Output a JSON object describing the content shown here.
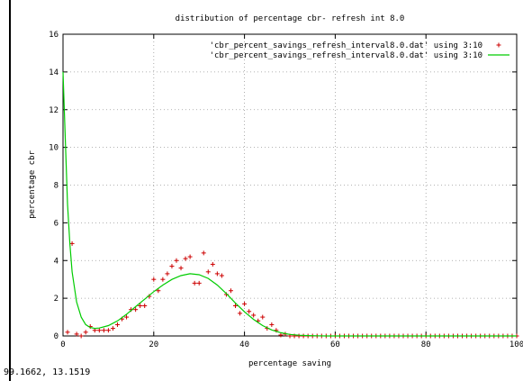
{
  "status_bar": {
    "coordinates": "99.1662,  13.1519"
  },
  "chart_data": {
    "type": "scatter",
    "title": "distribution of percentage cbr- refresh int 8.0",
    "xlabel": "percentage saving",
    "ylabel": "percentage cbr",
    "xlim": [
      0,
      100
    ],
    "ylim": [
      0,
      16
    ],
    "xticks": [
      0,
      20,
      40,
      60,
      80,
      100
    ],
    "yticks": [
      0,
      2,
      4,
      6,
      8,
      10,
      12,
      14,
      16
    ],
    "grid": true,
    "legend_position": "top-right",
    "series": [
      {
        "name": "'cbr_percent_savings_refresh_interval8.0.dat' using 3:10",
        "style": "points",
        "color": "#cc0000",
        "x": [
          1,
          2,
          3,
          4,
          5,
          6,
          7,
          8,
          9,
          10,
          11,
          12,
          13,
          14,
          15,
          16,
          17,
          18,
          19,
          20,
          21,
          22,
          23,
          24,
          25,
          26,
          27,
          28,
          29,
          30,
          31,
          32,
          33,
          34,
          35,
          36,
          37,
          38,
          39,
          40,
          41,
          42,
          43,
          44,
          45,
          46,
          47,
          48,
          49,
          50,
          51,
          52,
          53,
          54,
          55,
          56,
          57,
          58,
          59,
          60,
          61,
          62,
          63,
          64,
          65,
          66,
          67,
          68,
          69,
          70,
          71,
          72,
          73,
          74,
          75,
          76,
          77,
          78,
          79,
          80,
          81,
          82,
          83,
          84,
          85,
          86,
          87,
          88,
          89,
          90,
          91,
          92,
          93,
          94,
          95,
          96,
          97,
          98,
          99,
          100
        ],
        "y": [
          0.2,
          4.9,
          0.1,
          0.0,
          0.2,
          0.5,
          0.3,
          0.3,
          0.3,
          0.3,
          0.4,
          0.6,
          0.9,
          1.0,
          1.4,
          1.4,
          1.6,
          1.6,
          2.1,
          3.0,
          2.4,
          3.0,
          3.3,
          3.7,
          4.0,
          3.6,
          4.1,
          4.2,
          2.8,
          2.8,
          4.4,
          3.4,
          3.8,
          3.3,
          3.2,
          2.2,
          2.4,
          1.6,
          1.2,
          1.7,
          1.3,
          1.1,
          0.8,
          1.0,
          0.4,
          0.6,
          0.3,
          0.05,
          0.1,
          0.0,
          0.0,
          0.0,
          0.0,
          0.0,
          0.0,
          0.0,
          0.0,
          0.0,
          0.0,
          0.0,
          0.0,
          0.0,
          0.0,
          0.0,
          0.0,
          0.0,
          0.0,
          0.0,
          0.0,
          0.0,
          0.0,
          0.0,
          0.0,
          0.0,
          0.0,
          0.0,
          0.0,
          0.0,
          0.0,
          0.0,
          0.0,
          0.0,
          0.0,
          0.0,
          0.0,
          0.0,
          0.0,
          0.0,
          0.0,
          0.0,
          0.0,
          0.0,
          0.0,
          0.0,
          0.0,
          0.0,
          0.0,
          0.0,
          0.0,
          0.0
        ]
      },
      {
        "name": "'cbr_percent_savings_refresh_interval8.0.dat' using 3:10",
        "style": "line",
        "color": "#00cc00",
        "x": [
          0,
          0.5,
          1,
          1.5,
          2,
          3,
          4,
          5,
          6,
          7,
          8,
          10,
          12,
          14,
          16,
          18,
          20,
          22,
          24,
          26,
          28,
          30,
          32,
          34,
          36,
          38,
          40,
          42,
          44,
          46,
          48,
          50,
          52,
          54,
          56,
          58,
          60,
          65,
          70,
          80,
          90,
          100
        ],
        "y": [
          14.0,
          10.5,
          7.0,
          4.9,
          3.4,
          1.8,
          1.0,
          0.6,
          0.45,
          0.4,
          0.42,
          0.55,
          0.8,
          1.15,
          1.55,
          1.95,
          2.35,
          2.7,
          3.0,
          3.2,
          3.3,
          3.25,
          3.05,
          2.7,
          2.25,
          1.75,
          1.28,
          0.88,
          0.55,
          0.32,
          0.17,
          0.08,
          0.04,
          0.02,
          0.01,
          0.0,
          0.0,
          0.0,
          0.0,
          0.0,
          0.0,
          0.0
        ]
      }
    ]
  }
}
